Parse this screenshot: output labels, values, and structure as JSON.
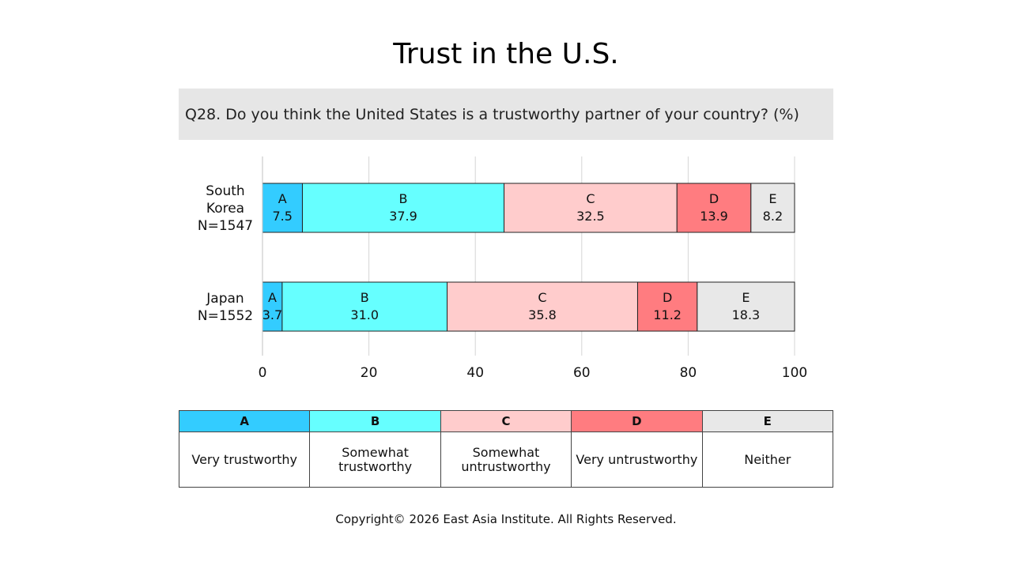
{
  "title": "Trust in the U.S.",
  "question": "Q28. Do you think the United States is a trustworthy partner of your country? (%)",
  "footer": "Copyright© 2026 East Asia Institute. All Rights Reserved.",
  "colors": {
    "A": "#33ccff",
    "B": "#66ffff",
    "C": "#ffcccc",
    "D": "#ff7c80",
    "E": "#e8e8e8"
  },
  "legend": [
    {
      "code": "A",
      "label": "Very trustworthy"
    },
    {
      "code": "B",
      "label": "Somewhat trustworthy"
    },
    {
      "code": "C",
      "label": "Somewhat untrustworthy"
    },
    {
      "code": "D",
      "label": "Very untrustworthy"
    },
    {
      "code": "E",
      "label": "Neither"
    }
  ],
  "chart_data": {
    "type": "bar",
    "orientation": "horizontal",
    "stacked": true,
    "categories": [
      [
        "South",
        "Korea",
        "N=1547"
      ],
      [
        "Japan",
        "N=1552"
      ]
    ],
    "series": [
      {
        "name": "A",
        "values": [
          7.5,
          3.7
        ]
      },
      {
        "name": "B",
        "values": [
          37.9,
          31.0
        ]
      },
      {
        "name": "C",
        "values": [
          32.5,
          35.8
        ]
      },
      {
        "name": "D",
        "values": [
          13.9,
          11.2
        ]
      },
      {
        "name": "E",
        "values": [
          8.2,
          18.3
        ]
      }
    ],
    "xlim": [
      0,
      100
    ],
    "xticks": [
      0,
      20,
      40,
      60,
      80,
      100
    ],
    "grid": true
  }
}
